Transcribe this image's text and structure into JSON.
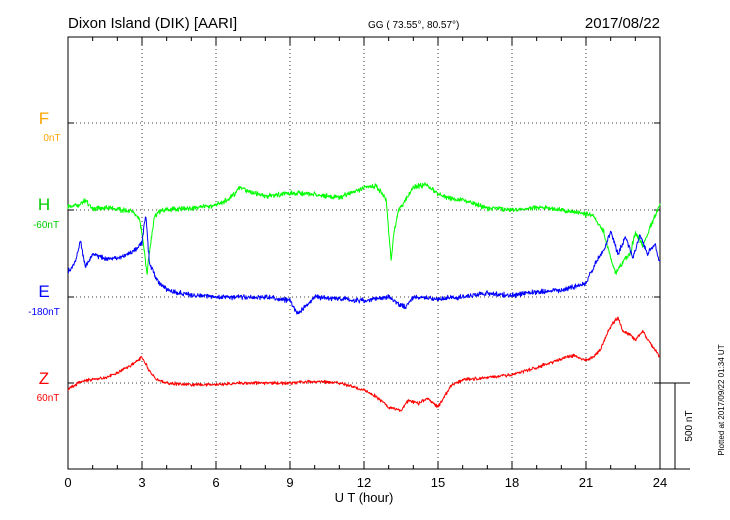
{
  "header": {
    "station": "Dixon Island (DIK)  [AARI]",
    "coordinates": "GG ( 73.55°,  80.57°)",
    "date": "2017/08/22"
  },
  "footer": {
    "plotted": "Plotted at 2017/09/22 01:34 UT"
  },
  "scale": {
    "label": "500 nT",
    "value_nT": 500
  },
  "components": [
    {
      "letter": "F",
      "base": "0nT",
      "color": "#ffa500"
    },
    {
      "letter": "H",
      "base": "-60nT",
      "color": "#00cc00"
    },
    {
      "letter": "E",
      "base": "-180nT",
      "color": "#0000ff"
    },
    {
      "letter": "Z",
      "base": "60nT",
      "color": "#ff0000"
    }
  ],
  "chart_data": {
    "type": "line",
    "title": "Dixon Island (DIK)  [AARI]",
    "xlabel": "U T (hour)",
    "ylabel": "",
    "xlim": [
      0,
      24
    ],
    "xticks": [
      0,
      3,
      6,
      9,
      12,
      15,
      18,
      21,
      24
    ],
    "grid": true,
    "legend": "left",
    "y_units": "nT offset from baseline",
    "series": [
      {
        "name": "H",
        "color": "#00ff00",
        "baseline": "-60nT",
        "x": [
          0,
          0.4,
          0.7,
          1.0,
          1.5,
          2.0,
          2.5,
          2.9,
          3.1,
          3.2,
          3.3,
          3.5,
          3.8,
          4.2,
          5.0,
          5.8,
          6.5,
          7.0,
          7.5,
          8.0,
          9.0,
          10.0,
          11.0,
          12.0,
          12.5,
          12.9,
          13.1,
          13.2,
          13.4,
          13.7,
          14.0,
          14.5,
          15.0,
          15.5,
          16.0,
          17.0,
          18.0,
          19.0,
          20.0,
          20.8,
          21.3,
          21.7,
          22.0,
          22.2,
          22.5,
          22.8,
          23.0,
          23.3,
          23.6,
          24.0
        ],
        "y": [
          20,
          30,
          55,
          10,
          15,
          5,
          -5,
          -50,
          -240,
          -380,
          -250,
          -40,
          0,
          5,
          10,
          20,
          60,
          130,
          100,
          80,
          100,
          90,
          70,
          130,
          140,
          60,
          -300,
          -150,
          0,
          60,
          130,
          150,
          90,
          70,
          60,
          10,
          0,
          15,
          0,
          -20,
          -30,
          -120,
          -280,
          -370,
          -300,
          -250,
          -130,
          -210,
          -100,
          30
        ]
      },
      {
        "name": "E",
        "color": "#0000ff",
        "baseline": "-180nT",
        "x": [
          0,
          0.3,
          0.5,
          0.7,
          1.0,
          1.5,
          2.0,
          2.5,
          2.8,
          3.0,
          3.15,
          3.3,
          3.6,
          4.0,
          5.0,
          6.0,
          7.0,
          8.0,
          9.0,
          9.3,
          10.0,
          11.0,
          12.0,
          13.0,
          13.4,
          13.7,
          14.0,
          15.0,
          16.0,
          17.0,
          18.0,
          19.0,
          20.0,
          21.0,
          21.4,
          21.8,
          22.0,
          22.3,
          22.6,
          22.9,
          23.2,
          23.5,
          23.8,
          24.0
        ],
        "y": [
          150,
          200,
          330,
          170,
          250,
          220,
          230,
          250,
          280,
          320,
          480,
          200,
          100,
          40,
          10,
          0,
          0,
          0,
          -20,
          -100,
          0,
          -10,
          -20,
          0,
          -40,
          -60,
          0,
          -10,
          0,
          20,
          10,
          30,
          40,
          80,
          200,
          300,
          380,
          250,
          350,
          230,
          360,
          250,
          310,
          200
        ]
      },
      {
        "name": "Z",
        "color": "#ff0000",
        "baseline": "60nT",
        "x": [
          0,
          0.5,
          1.0,
          1.5,
          2.0,
          2.5,
          3.0,
          3.3,
          3.6,
          4.0,
          5.0,
          6.0,
          7.0,
          8.0,
          9.0,
          10.0,
          11.0,
          12.0,
          12.5,
          13.0,
          13.5,
          13.8,
          14.2,
          14.6,
          15.0,
          15.5,
          16.0,
          17.0,
          18.0,
          19.0,
          20.0,
          20.5,
          21.0,
          21.3,
          21.6,
          21.9,
          22.1,
          22.3,
          22.5,
          22.8,
          23.0,
          23.3,
          23.6,
          24.0
        ],
        "y": [
          -40,
          10,
          20,
          30,
          60,
          100,
          150,
          70,
          20,
          0,
          -10,
          -10,
          0,
          0,
          0,
          10,
          0,
          -40,
          -80,
          -140,
          -160,
          -100,
          -120,
          -90,
          -140,
          -20,
          20,
          30,
          50,
          90,
          140,
          160,
          130,
          150,
          200,
          300,
          350,
          380,
          300,
          280,
          250,
          300,
          230,
          150
        ]
      }
    ]
  }
}
